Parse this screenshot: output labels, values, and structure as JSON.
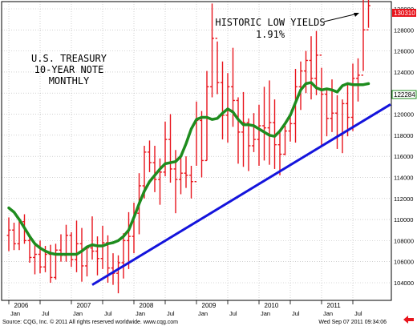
{
  "annotations": {
    "title_lines": [
      "U.S. TREASURY",
      "10-YEAR NOTE",
      "MONTHLY"
    ],
    "callout_lines": [
      "HISTORIC LOW YIELDS",
      "1.91%"
    ]
  },
  "footer": {
    "source": "Source: CQG, Inc. © 2011 All rights reserved worldwide. www.cqg.com",
    "timestamp": "Wed Sep 07 2011 09:34:06"
  },
  "price_tags": {
    "last_price": "130310",
    "average_price": "122284"
  },
  "colors": {
    "candles": "#e8141c",
    "moving_average": "#1e8c1e",
    "trendline": "#1414dc",
    "last_tag": "#e8141c"
  },
  "icons": [
    "scroll-left-arrow-icon"
  ],
  "chart_data": {
    "type": "bar",
    "title": "U.S. TREASURY 10-YEAR NOTE MONTHLY",
    "ylim": [
      102000,
      131000
    ],
    "y_ticks": [
      "130000",
      "128000",
      "126000",
      "124000",
      "122000",
      "120000",
      "118000",
      "116000",
      "114000",
      "112000",
      "110000",
      "108000",
      "106000",
      "104000"
    ],
    "x_year_labels": [
      {
        "label": "2006",
        "month_index": 1
      },
      {
        "label": "2007",
        "month_index": 13
      },
      {
        "label": "2008",
        "month_index": 25
      },
      {
        "label": "2009",
        "month_index": 37
      },
      {
        "label": "2010",
        "month_index": 49
      },
      {
        "label": "2011",
        "month_index": 61
      }
    ],
    "x_month_labels": [
      {
        "label": "Jan",
        "month_index": 0
      },
      {
        "label": "Jul",
        "month_index": 6
      },
      {
        "label": "Jan",
        "month_index": 12
      },
      {
        "label": "Jul",
        "month_index": 18
      },
      {
        "label": "Jan",
        "month_index": 24
      },
      {
        "label": "Jul",
        "month_index": 30
      },
      {
        "label": "Jan",
        "month_index": 36
      },
      {
        "label": "Jul",
        "month_index": 42
      },
      {
        "label": "Jan",
        "month_index": 48
      },
      {
        "label": "Jul",
        "month_index": 54
      },
      {
        "label": "Jan",
        "month_index": 60
      },
      {
        "label": "Jul",
        "month_index": 66
      }
    ],
    "series": [
      {
        "type": "ohlc",
        "points": [
          [
            108500,
            110200,
            107000,
            109000
          ],
          [
            109000,
            109700,
            107100,
            107700
          ],
          [
            107700,
            110000,
            107100,
            109800
          ],
          [
            109800,
            110500,
            107700,
            108000
          ],
          [
            108000,
            108600,
            105900,
            106400
          ],
          [
            106400,
            107600,
            104800,
            106700
          ],
          [
            106700,
            108000,
            104900,
            105500
          ],
          [
            105500,
            107500,
            105000,
            106700
          ],
          [
            106700,
            107600,
            104000,
            104500
          ],
          [
            104500,
            107700,
            104300,
            107100
          ],
          [
            107100,
            108600,
            106000,
            106600
          ],
          [
            106600,
            109500,
            106000,
            108500
          ],
          [
            108500,
            108800,
            105500,
            106200
          ],
          [
            106200,
            109900,
            105000,
            107700
          ],
          [
            107700,
            109200,
            104100,
            105600
          ],
          [
            105600,
            107500,
            104600,
            107300
          ],
          [
            107300,
            110300,
            106200,
            107000
          ],
          [
            107000,
            108400,
            104700,
            106300
          ],
          [
            106300,
            109400,
            105300,
            107800
          ],
          [
            107800,
            108500,
            104000,
            105400
          ],
          [
            105400,
            106800,
            103800,
            104900
          ],
          [
            104900,
            106600,
            103000,
            105900
          ],
          [
            105900,
            108700,
            104400,
            108000
          ],
          [
            108000,
            110700,
            105300,
            108400
          ],
          [
            108400,
            111600,
            106800,
            110600
          ],
          [
            110600,
            114400,
            108600,
            113200
          ],
          [
            113200,
            117000,
            112000,
            116400
          ],
          [
            116400,
            117500,
            114500,
            115400
          ],
          [
            115400,
            117000,
            112600,
            113800
          ],
          [
            113800,
            115800,
            111400,
            114500
          ],
          [
            114500,
            119300,
            114100,
            117600
          ],
          [
            117600,
            120000,
            113500,
            114800
          ],
          [
            114800,
            116600,
            110600,
            113800
          ],
          [
            113800,
            116200,
            112400,
            114400
          ],
          [
            114400,
            116000,
            113000,
            114200
          ],
          [
            114200,
            115100,
            112000,
            113600
          ],
          [
            113600,
            121200,
            115100,
            119400
          ],
          [
            119400,
            120300,
            114000,
            115600
          ],
          [
            115600,
            124100,
            115600,
            122600
          ],
          [
            122600,
            130500,
            121600,
            127200
          ],
          [
            127200,
            126900,
            121900,
            123000
          ],
          [
            123000,
            125000,
            117600,
            119900
          ],
          [
            119900,
            123900,
            117300,
            122600
          ],
          [
            122600,
            126300,
            118800,
            121300
          ],
          [
            121300,
            121600,
            115300,
            118300
          ],
          [
            118300,
            122100,
            115000,
            119200
          ],
          [
            119200,
            119600,
            114600,
            117000
          ],
          [
            117000,
            120100,
            116400,
            117600
          ],
          [
            117600,
            120900,
            115100,
            118900
          ],
          [
            118900,
            122600,
            115600,
            118700
          ],
          [
            118700,
            123200,
            115200,
            119200
          ],
          [
            119200,
            121400,
            114800,
            117100
          ],
          [
            117100,
            118400,
            114200,
            116200
          ],
          [
            116200,
            118900,
            116100,
            118400
          ],
          [
            118400,
            120000,
            117400,
            119100
          ],
          [
            119100,
            124300,
            117300,
            122600
          ],
          [
            122600,
            125000,
            120400,
            124100
          ],
          [
            124100,
            126000,
            122000,
            125100
          ],
          [
            125100,
            127400,
            121400,
            123400
          ],
          [
            123400,
            127900,
            121800,
            125600
          ],
          [
            125600,
            124400,
            116900,
            121900
          ],
          [
            121900,
            122500,
            117900,
            119600
          ],
          [
            119600,
            123300,
            118300,
            120100
          ],
          [
            120100,
            121800,
            116700,
            118000
          ],
          [
            118000,
            121400,
            116300,
            121000
          ],
          [
            121000,
            123000,
            117900,
            119700
          ],
          [
            119700,
            124800,
            118400,
            123400
          ],
          [
            123400,
            125300,
            121200,
            123700
          ],
          [
            123700,
            131300,
            124100,
            128000
          ],
          [
            128000,
            131100,
            128200,
            130300
          ]
        ]
      },
      {
        "name": "",
        "type": "moving_average",
        "values": [
          111100,
          110700,
          110000,
          109200,
          108400,
          107700,
          107300,
          107000,
          106800,
          106700,
          106700,
          106700,
          106700,
          106700,
          107000,
          107400,
          107600,
          107500,
          107500,
          107700,
          107800,
          108000,
          108400,
          109000,
          110200,
          111500,
          112700,
          113600,
          114200,
          114800,
          115300,
          115400,
          115500,
          116000,
          117200,
          118600,
          119500,
          119700,
          119700,
          119500,
          119600,
          120100,
          120500,
          120200,
          119500,
          119000,
          119000,
          118900,
          118600,
          118300,
          118000,
          117900,
          118400,
          119100,
          119900,
          121100,
          122300,
          122900,
          123000,
          122500,
          122300,
          122400,
          122300,
          122100,
          122700,
          122900,
          122800,
          122800,
          122800,
          122900
        ]
      },
      {
        "name": "",
        "type": "trendline",
        "start": {
          "month_index": 16,
          "value": 103800
        },
        "end": {
          "month_index": 72,
          "value": 120700
        }
      }
    ]
  }
}
